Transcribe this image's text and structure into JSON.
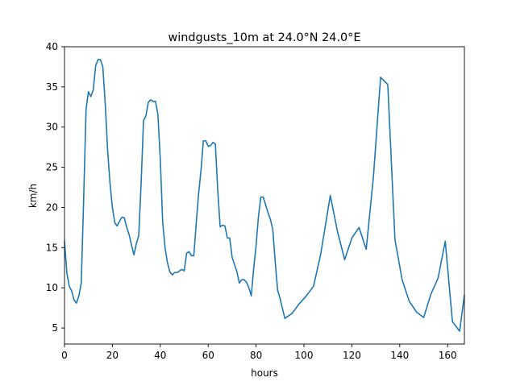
{
  "chart_data": {
    "type": "line",
    "title": "windgusts_10m at 24.0°N 24.0°E",
    "xlabel": "hours",
    "ylabel": "km/h",
    "xlim": [
      0,
      167
    ],
    "ylim": [
      3,
      40
    ],
    "xticks": [
      0,
      20,
      40,
      60,
      80,
      100,
      120,
      140,
      160
    ],
    "yticks": [
      5,
      10,
      15,
      20,
      25,
      30,
      35,
      40
    ],
    "grid": false,
    "line_color": "#1f77b4",
    "series": [
      {
        "x": [
          0,
          1,
          2,
          3,
          4,
          5,
          6,
          7,
          8,
          9,
          10,
          11,
          12,
          13,
          14,
          15,
          16,
          17,
          18,
          19,
          20,
          21,
          22,
          23,
          24,
          25,
          26,
          27,
          28,
          29,
          30,
          31,
          32,
          33,
          34,
          35,
          36,
          37,
          38,
          39,
          40,
          41,
          42,
          43,
          44,
          45,
          46,
          47,
          48,
          49,
          50,
          51,
          52,
          53,
          54,
          55,
          56,
          57,
          58,
          59,
          60,
          61,
          62,
          63,
          64,
          65,
          66,
          67,
          68,
          69,
          70,
          71,
          72,
          73,
          74,
          75,
          76,
          77,
          78,
          79,
          80,
          81,
          82,
          83,
          84,
          85,
          86,
          87,
          88,
          89,
          90,
          92,
          95,
          98,
          101,
          104,
          107,
          111,
          114,
          117,
          120,
          123,
          126,
          129,
          132,
          135,
          138,
          141,
          144,
          147,
          150,
          153,
          156,
          159,
          162,
          165,
          167
        ],
        "y": [
          15.8,
          11.8,
          10.2,
          9.6,
          8.5,
          8.1,
          9.0,
          10.6,
          21.0,
          32.2,
          34.4,
          33.8,
          34.6,
          37.6,
          38.4,
          38.4,
          37.5,
          33.0,
          27.2,
          23.0,
          20.0,
          18.1,
          17.7,
          18.3,
          18.8,
          18.7,
          17.5,
          16.6,
          15.3,
          14.1,
          15.5,
          16.5,
          23.0,
          30.8,
          31.4,
          33.1,
          33.4,
          33.2,
          33.2,
          31.6,
          26.0,
          18.2,
          15.0,
          13.1,
          12.0,
          11.6,
          11.9,
          11.9,
          12.1,
          12.3,
          12.1,
          14.3,
          14.5,
          14.0,
          14.0,
          18.0,
          21.7,
          24.6,
          28.3,
          28.3,
          27.6,
          27.7,
          28.1,
          27.9,
          22.1,
          17.6,
          17.8,
          17.7,
          16.2,
          16.2,
          13.8,
          12.9,
          12.0,
          10.6,
          11.0,
          11.0,
          10.7,
          10.0,
          9.0,
          12.4,
          15.2,
          18.9,
          21.3,
          21.3,
          20.3,
          19.3,
          18.5,
          17.2,
          13.2,
          9.7,
          8.7,
          6.2,
          6.8,
          8.0,
          9.0,
          10.2,
          14.2,
          21.5,
          17.0,
          13.5,
          16.2,
          17.5,
          14.8,
          23.8,
          36.2,
          35.3,
          16.0,
          11.0,
          8.3,
          7.0,
          6.3,
          9.2,
          11.2,
          15.8,
          5.8,
          4.6,
          9.1
        ]
      }
    ]
  }
}
